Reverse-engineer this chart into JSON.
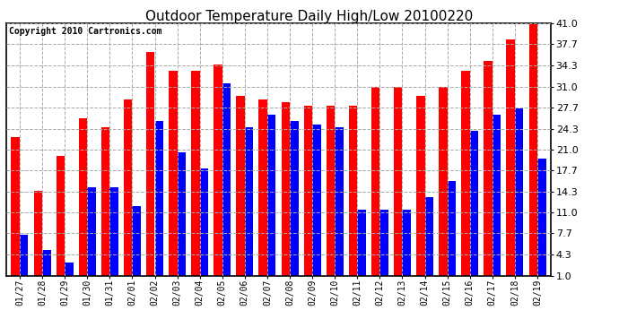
{
  "title": "Outdoor Temperature Daily High/Low 20100220",
  "copyright": "Copyright 2010 Cartronics.com",
  "categories": [
    "01/27",
    "01/28",
    "01/29",
    "01/30",
    "01/31",
    "02/01",
    "02/02",
    "02/03",
    "02/04",
    "02/05",
    "02/06",
    "02/07",
    "02/08",
    "02/09",
    "02/10",
    "02/11",
    "02/12",
    "02/13",
    "02/14",
    "02/15",
    "02/16",
    "02/17",
    "02/18",
    "02/19"
  ],
  "high_values": [
    23.0,
    14.5,
    20.0,
    26.0,
    24.5,
    29.0,
    36.5,
    33.5,
    33.5,
    34.5,
    29.5,
    29.0,
    28.5,
    28.0,
    28.0,
    28.0,
    31.0,
    31.0,
    29.5,
    31.0,
    33.5,
    35.0,
    38.5,
    41.0
  ],
  "low_values": [
    7.5,
    5.0,
    3.0,
    15.0,
    15.0,
    12.0,
    25.5,
    20.5,
    18.0,
    31.5,
    24.5,
    26.5,
    25.5,
    25.0,
    24.5,
    11.5,
    11.5,
    11.5,
    13.5,
    16.0,
    24.0,
    26.5,
    27.5,
    19.5
  ],
  "high_color": "#ff0000",
  "low_color": "#0000ff",
  "bg_color": "#ffffff",
  "plot_bg_color": "#ffffff",
  "grid_color": "#aaaaaa",
  "yticks": [
    1.0,
    4.3,
    7.7,
    11.0,
    14.3,
    17.7,
    21.0,
    24.3,
    27.7,
    31.0,
    34.3,
    37.7,
    41.0
  ],
  "ylim": [
    1.0,
    41.0
  ],
  "bar_width": 0.38,
  "title_fontsize": 11,
  "tick_fontsize": 7,
  "ytick_fontsize": 8,
  "copyright_color": "#000000",
  "copyright_fontsize": 7
}
